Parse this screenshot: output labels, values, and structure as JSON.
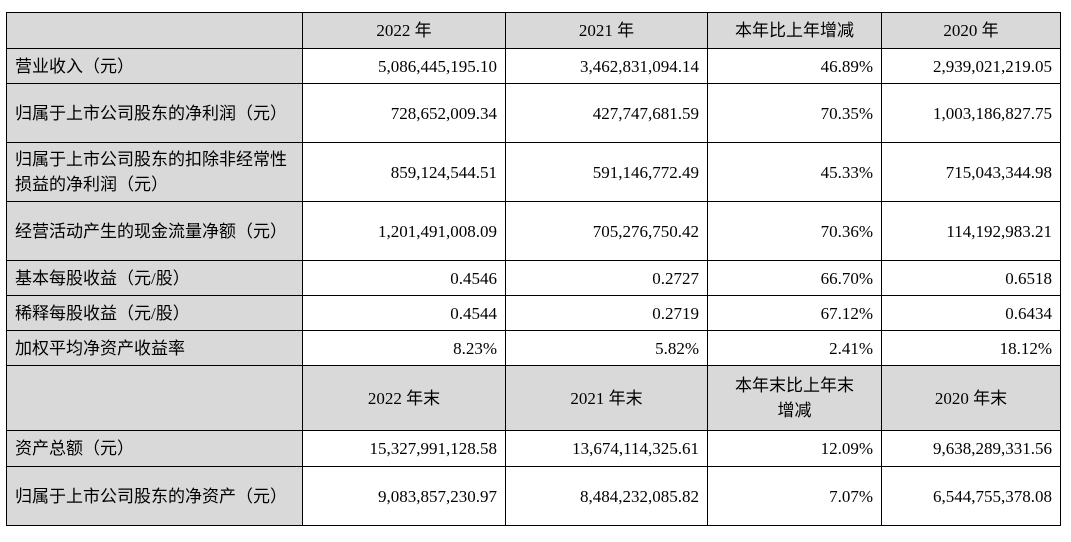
{
  "header1": [
    "2022 年",
    "2021 年",
    "本年比上年增减",
    "2020 年"
  ],
  "rows1": [
    {
      "label": "营业收入（元）",
      "values": [
        "5,086,445,195.10",
        "3,462,831,094.14",
        "46.89%",
        "2,939,021,219.05"
      ]
    },
    {
      "label": "归属于上市公司股东的净利润（元）",
      "values": [
        "728,652,009.34",
        "427,747,681.59",
        "70.35%",
        "1,003,186,827.75"
      ]
    },
    {
      "label": "归属于上市公司股东的扣除非经常性损益的净利润（元）",
      "values": [
        "859,124,544.51",
        "591,146,772.49",
        "45.33%",
        "715,043,344.98"
      ]
    },
    {
      "label": "经营活动产生的现金流量净额（元）",
      "values": [
        "1,201,491,008.09",
        "705,276,750.42",
        "70.36%",
        "114,192,983.21"
      ]
    },
    {
      "label": "基本每股收益（元/股）",
      "values": [
        "0.4546",
        "0.2727",
        "66.70%",
        "0.6518"
      ]
    },
    {
      "label": "稀释每股收益（元/股）",
      "values": [
        "0.4544",
        "0.2719",
        "67.12%",
        "0.6434"
      ]
    },
    {
      "label": "加权平均净资产收益率",
      "values": [
        "8.23%",
        "5.82%",
        "2.41%",
        "18.12%"
      ]
    }
  ],
  "header2": [
    "2022 年末",
    "2021 年末",
    "本年末比上年末增减",
    "2020 年末"
  ],
  "rows2": [
    {
      "label": "资产总额（元）",
      "values": [
        "15,327,991,128.58",
        "13,674,114,325.61",
        "12.09%",
        "9,638,289,331.56"
      ]
    },
    {
      "label": "归属于上市公司股东的净资产（元）",
      "values": [
        "9,083,857,230.97",
        "8,484,232,085.82",
        "7.07%",
        "6,544,755,378.08"
      ]
    }
  ]
}
